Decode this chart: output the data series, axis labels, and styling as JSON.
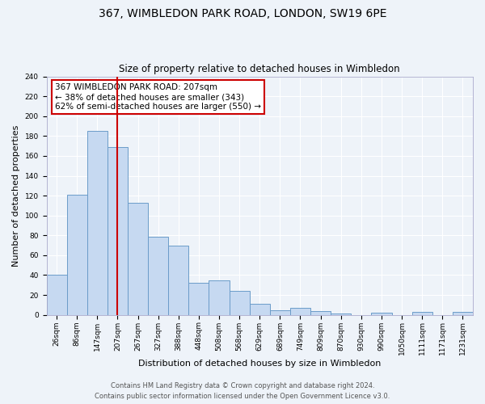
{
  "title": "367, WIMBLEDON PARK ROAD, LONDON, SW19 6PE",
  "subtitle": "Size of property relative to detached houses in Wimbledon",
  "xlabel": "Distribution of detached houses by size in Wimbledon",
  "ylabel": "Number of detached properties",
  "bin_labels": [
    "26sqm",
    "86sqm",
    "147sqm",
    "207sqm",
    "267sqm",
    "327sqm",
    "388sqm",
    "448sqm",
    "508sqm",
    "568sqm",
    "629sqm",
    "689sqm",
    "749sqm",
    "809sqm",
    "870sqm",
    "930sqm",
    "990sqm",
    "1050sqm",
    "1111sqm",
    "1171sqm",
    "1231sqm"
  ],
  "bar_heights": [
    40,
    121,
    185,
    169,
    113,
    79,
    70,
    32,
    35,
    24,
    11,
    5,
    7,
    4,
    1,
    0,
    2,
    0,
    3,
    0,
    3
  ],
  "bar_color": "#c6d9f1",
  "bar_edge_color": "#6b9cc9",
  "vline_x_index": 3,
  "vline_color": "#cc0000",
  "annotation_title": "367 WIMBLEDON PARK ROAD: 207sqm",
  "annotation_line1": "← 38% of detached houses are smaller (343)",
  "annotation_line2": "62% of semi-detached houses are larger (550) →",
  "annotation_box_color": "#ffffff",
  "annotation_box_edge_color": "#cc0000",
  "ylim": [
    0,
    240
  ],
  "yticks": [
    0,
    20,
    40,
    60,
    80,
    100,
    120,
    140,
    160,
    180,
    200,
    220,
    240
  ],
  "footer_line1": "Contains HM Land Registry data © Crown copyright and database right 2024.",
  "footer_line2": "Contains public sector information licensed under the Open Government Licence v3.0.",
  "bg_color": "#eef3f9",
  "plot_bg_color": "#eef3f9",
  "grid_color": "#ffffff",
  "title_fontsize": 10,
  "subtitle_fontsize": 8.5,
  "axis_label_fontsize": 8,
  "tick_fontsize": 6.5,
  "footer_fontsize": 6,
  "annotation_fontsize": 7.5
}
